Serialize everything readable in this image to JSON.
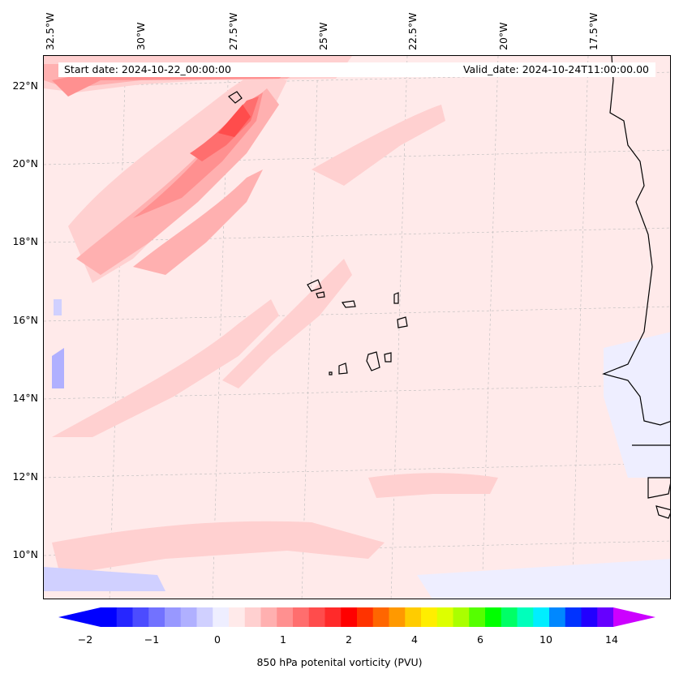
{
  "header": {
    "start_date": "Start date: 2024-10-22_00:00:00",
    "valid_date": "Valid_date: 2024-10-24T11:00:00.00"
  },
  "map": {
    "longitude_labels": [
      "32.5°W",
      "30°W",
      "27.5°W",
      "25°W",
      "22.5°W",
      "20°W",
      "17.5°W"
    ],
    "latitude_labels": [
      "22°N",
      "20°N",
      "18°N",
      "16°N",
      "14°N",
      "12°N",
      "10°N"
    ],
    "gridlines": "dashed light gray",
    "coastline_color": "#000000",
    "field": "850 hPa potential vorticity"
  },
  "colorbar": {
    "title": "850 hPa potenital vorticity (PVU)",
    "tick_labels": [
      "−2",
      "−1",
      "0",
      "1",
      "2",
      "4",
      "6",
      "10",
      "14"
    ],
    "colors": [
      "#0000ff",
      "#2626ff",
      "#4c4cff",
      "#7272ff",
      "#9898ff",
      "#b0b0ff",
      "#d0d0ff",
      "#eeeeff",
      "#ffeaea",
      "#ffd0d0",
      "#ffb0b0",
      "#ff9090",
      "#ff6e6e",
      "#ff4c4c",
      "#ff2a2a",
      "#ff0000",
      "#ff3300",
      "#ff6600",
      "#ff9900",
      "#ffcc00",
      "#ffee00",
      "#ddff00",
      "#aaff00",
      "#55ff00",
      "#00ff00",
      "#00ff66",
      "#00ffbb",
      "#00eeff",
      "#0088ff",
      "#0033ff",
      "#2200ff",
      "#6600ff"
    ],
    "extend_min_color": "#0000ff",
    "extend_max_color": "#cc00ff"
  }
}
